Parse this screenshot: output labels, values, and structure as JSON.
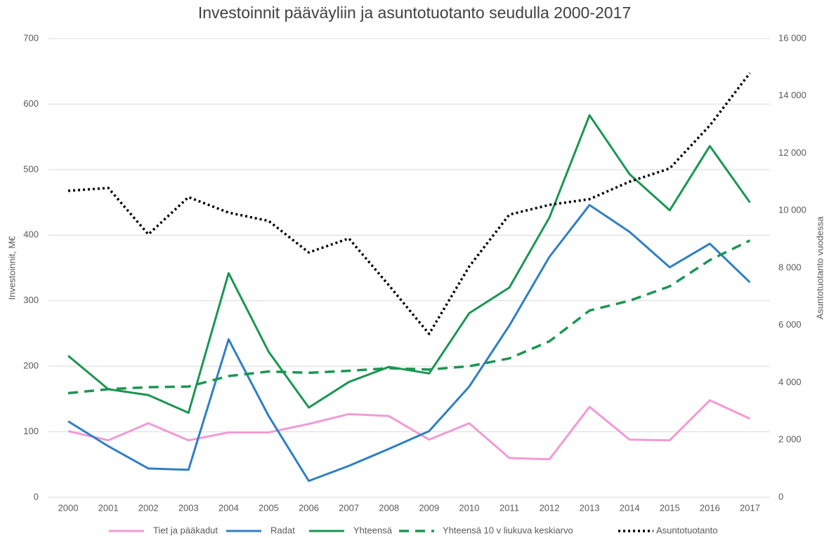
{
  "chart_data": {
    "type": "line",
    "title": "Investoinnit pääväyliin ja asuntotuotanto seudulla 2000-2017",
    "y_label": "Investoinnit, M€",
    "y2_label": "Asuntotuotanto vuodessa",
    "categories": [
      "2000",
      "2001",
      "2002",
      "2003",
      "2004",
      "2005",
      "2006",
      "2007",
      "2008",
      "2009",
      "2010",
      "2011",
      "2012",
      "2013",
      "2014",
      "2015",
      "2016",
      "2017"
    ],
    "ylim": [
      0,
      700
    ],
    "yticks": [
      0,
      100,
      200,
      300,
      400,
      500,
      600,
      700
    ],
    "y2lim": [
      0,
      16000
    ],
    "y2ticks": [
      0,
      {
        "value": 2000,
        "label": "2 000"
      },
      {
        "value": 4000,
        "label": "4 000"
      },
      {
        "value": 6000,
        "label": "6 000"
      },
      {
        "value": 8000,
        "label": "8 000"
      },
      {
        "value": 10000,
        "label": "10 000"
      },
      {
        "value": 12000,
        "label": "12 000"
      },
      {
        "value": 14000,
        "label": "14 000"
      },
      {
        "value": 16000,
        "label": "16 000"
      }
    ],
    "grid": true,
    "legend": "bottom",
    "series": [
      {
        "name": "Tiet ja pääkadut",
        "color": "#f29ad6",
        "style": "solid",
        "values": [
          101,
          87,
          113,
          87,
          99,
          99,
          112,
          127,
          124,
          88,
          113,
          60,
          58,
          138,
          88,
          87,
          148,
          120
        ]
      },
      {
        "name": "Radat",
        "color": "#2e7fc4",
        "style": "solid",
        "values": [
          116,
          78,
          44,
          42,
          241,
          124,
          25,
          48,
          74,
          101,
          169,
          262,
          367,
          446,
          405,
          351,
          387,
          328
        ]
      },
      {
        "name": "Yhteensä",
        "color": "#1a9652",
        "style": "solid",
        "values": [
          216,
          165,
          156,
          129,
          342,
          222,
          137,
          176,
          199,
          189,
          281,
          320,
          427,
          583,
          493,
          438,
          536,
          450
        ]
      },
      {
        "name": "Yhteensä 10 v liukuva keskiarvo",
        "color": "#1a9652",
        "style": "dashed",
        "values": [
          159,
          165,
          168,
          169,
          185,
          192,
          190,
          193,
          197,
          195,
          200,
          212,
          238,
          285,
          300,
          322,
          362,
          392
        ]
      },
      {
        "name": "Asuntotuotanto",
        "color": "#000000",
        "style": "dotted",
        "axis": "y2",
        "values": [
          10690,
          10790,
          9170,
          10470,
          9930,
          9640,
          8540,
          9030,
          7390,
          5700,
          8050,
          9860,
          10200,
          10400,
          11010,
          11470,
          12970,
          14800
        ]
      }
    ]
  }
}
